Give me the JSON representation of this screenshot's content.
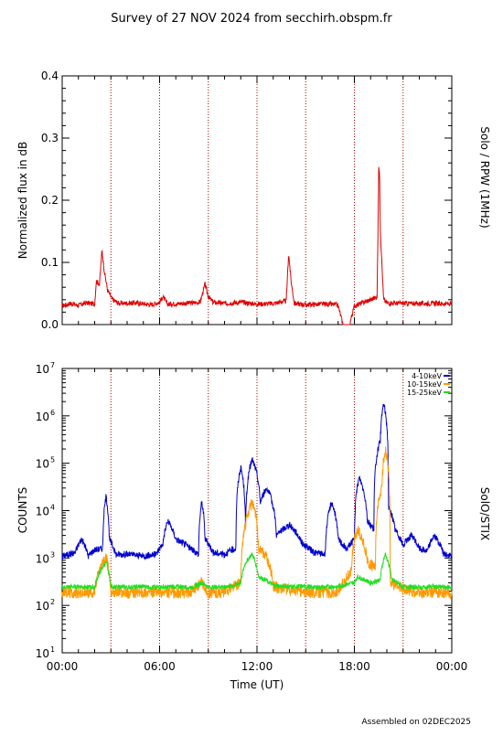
{
  "title": "Survey of 27 NOV 2024 from secchirh.obspm.fr",
  "footer": "Assembled on 02DEC2025",
  "colors": {
    "rpw": "#dd0000",
    "low": "#0000cc",
    "mid": "#ff9900",
    "high": "#22dd22",
    "guide": "#aa0000"
  },
  "chart_data": [
    {
      "type": "line",
      "ylabel": "Normalized flux in dB",
      "right_label": "Solo / RPW (1MHz)",
      "ylim": [
        0,
        0.4
      ],
      "yticks": [
        "0.0",
        "0.1",
        "0.2",
        "0.3",
        "0.4"
      ],
      "xlim": [
        0,
        24
      ],
      "guide_hours": [
        3,
        6,
        9,
        12,
        15,
        18,
        21
      ],
      "grid": false,
      "series": [
        {
          "x": [
            0,
            0.5,
            1.0,
            1.5,
            2.0,
            2.1,
            2.3,
            2.45,
            2.6,
            2.8,
            3.1,
            3.5,
            4.5,
            5.5,
            6.0,
            6.2,
            6.5,
            7.5,
            8.5,
            8.8,
            9.0,
            9.3,
            10.0,
            11.0,
            12.0,
            13.0,
            13.8,
            13.95,
            14.1,
            14.3,
            15.0,
            16.0,
            16.9,
            17.0,
            17.3,
            17.35,
            17.4,
            17.6,
            17.7,
            18.0,
            18.5,
            19.0,
            19.4,
            19.5,
            19.55,
            19.6,
            19.8,
            20.0,
            21.0,
            22.0,
            23.0,
            24.0
          ],
          "values": [
            0.03,
            0.034,
            0.031,
            0.035,
            0.033,
            0.07,
            0.065,
            0.12,
            0.085,
            0.055,
            0.04,
            0.034,
            0.035,
            0.032,
            0.036,
            0.045,
            0.033,
            0.034,
            0.036,
            0.065,
            0.045,
            0.036,
            0.034,
            0.036,
            0.033,
            0.034,
            0.038,
            0.115,
            0.07,
            0.034,
            0.032,
            0.033,
            0.032,
            0.03,
            0.0,
            0.0,
            0.0,
            0.0,
            0.0,
            0.03,
            0.035,
            0.04,
            0.045,
            0.25,
            0.25,
            0.15,
            0.04,
            0.035,
            0.034,
            0.034,
            0.034,
            0.033
          ]
        }
      ]
    },
    {
      "type": "line",
      "ylabel": "COUNTS",
      "right_label": "SolO/STIX",
      "xlabel": "Time (UT)",
      "yscale": "log",
      "ylim": [
        10,
        10000000
      ],
      "yticks_exp": [
        "1",
        "2",
        "3",
        "4",
        "5",
        "6",
        "7"
      ],
      "xlim": [
        0,
        24
      ],
      "xticks": [
        "00:00",
        "06:00",
        "12:00",
        "18:00",
        "00:00"
      ],
      "guide_hours": [
        3,
        6,
        9,
        12,
        15,
        18,
        21
      ],
      "legend": "top-right",
      "series": [
        {
          "name": "4-10keV",
          "x": [
            0,
            0.8,
            1.2,
            1.6,
            2.0,
            2.5,
            2.7,
            2.9,
            3.3,
            4.0,
            5.0,
            5.8,
            6.2,
            6.5,
            7.0,
            7.5,
            8.0,
            8.4,
            8.6,
            8.8,
            9.3,
            10.0,
            10.7,
            11.0,
            11.3,
            11.7,
            12.2,
            12.6,
            13.2,
            14.0,
            14.8,
            15.5,
            16.2,
            16.6,
            17.0,
            17.5,
            18.0,
            18.3,
            18.8,
            19.2,
            19.6,
            19.8,
            20.1,
            20.5,
            21.0,
            21.5,
            22.0,
            22.5,
            22.9,
            23.5,
            24.0
          ],
          "values": [
            1100,
            1300,
            2500,
            1100,
            1500,
            1600,
            20000,
            2500,
            1200,
            1200,
            1100,
            1200,
            2000,
            6000,
            2500,
            2000,
            1500,
            1200,
            15000,
            2500,
            1300,
            1200,
            1600,
            80000,
            3000,
            120000,
            15000,
            30000,
            3000,
            5000,
            2000,
            1300,
            1200,
            15000,
            2500,
            1500,
            2500,
            50000,
            6000,
            4000,
            300000,
            1800000,
            12000,
            4000,
            1800,
            3000,
            1600,
            1400,
            3000,
            1200,
            1100
          ]
        },
        {
          "name": "10-15keV",
          "x": [
            0,
            1.0,
            2.0,
            2.7,
            3.0,
            4.0,
            5.0,
            6.0,
            7.0,
            8.0,
            8.6,
            9.0,
            10.0,
            10.5,
            11.0,
            11.3,
            11.7,
            12.1,
            12.5,
            13.0,
            14.0,
            15.0,
            16.0,
            17.0,
            17.8,
            18.2,
            18.8,
            19.3,
            19.7,
            19.9,
            20.2,
            21.0,
            22.0,
            23.0,
            24.0
          ],
          "values": [
            190,
            180,
            190,
            1000,
            200,
            180,
            190,
            190,
            180,
            190,
            300,
            180,
            190,
            250,
            300,
            5000,
            15000,
            1500,
            1200,
            250,
            210,
            190,
            190,
            180,
            500,
            4000,
            800,
            600,
            30000,
            200000,
            300,
            220,
            180,
            190,
            180
          ]
        },
        {
          "name": "15-25keV",
          "x": [
            0,
            1.0,
            2.0,
            2.7,
            3.0,
            4.0,
            5.0,
            6.0,
            7.0,
            8.0,
            8.6,
            9.0,
            10.0,
            10.5,
            11.0,
            11.3,
            11.7,
            12.1,
            12.5,
            13.0,
            14.0,
            15.0,
            16.0,
            17.0,
            18.0,
            18.2,
            19.0,
            19.6,
            19.9,
            20.3,
            21.0,
            22.0,
            23.0,
            24.0
          ],
          "values": [
            240,
            250,
            240,
            800,
            250,
            240,
            250,
            240,
            250,
            240,
            300,
            240,
            250,
            260,
            300,
            800,
            1200,
            400,
            350,
            260,
            250,
            250,
            240,
            250,
            300,
            400,
            300,
            350,
            1200,
            350,
            250,
            240,
            250,
            240
          ]
        }
      ]
    }
  ]
}
